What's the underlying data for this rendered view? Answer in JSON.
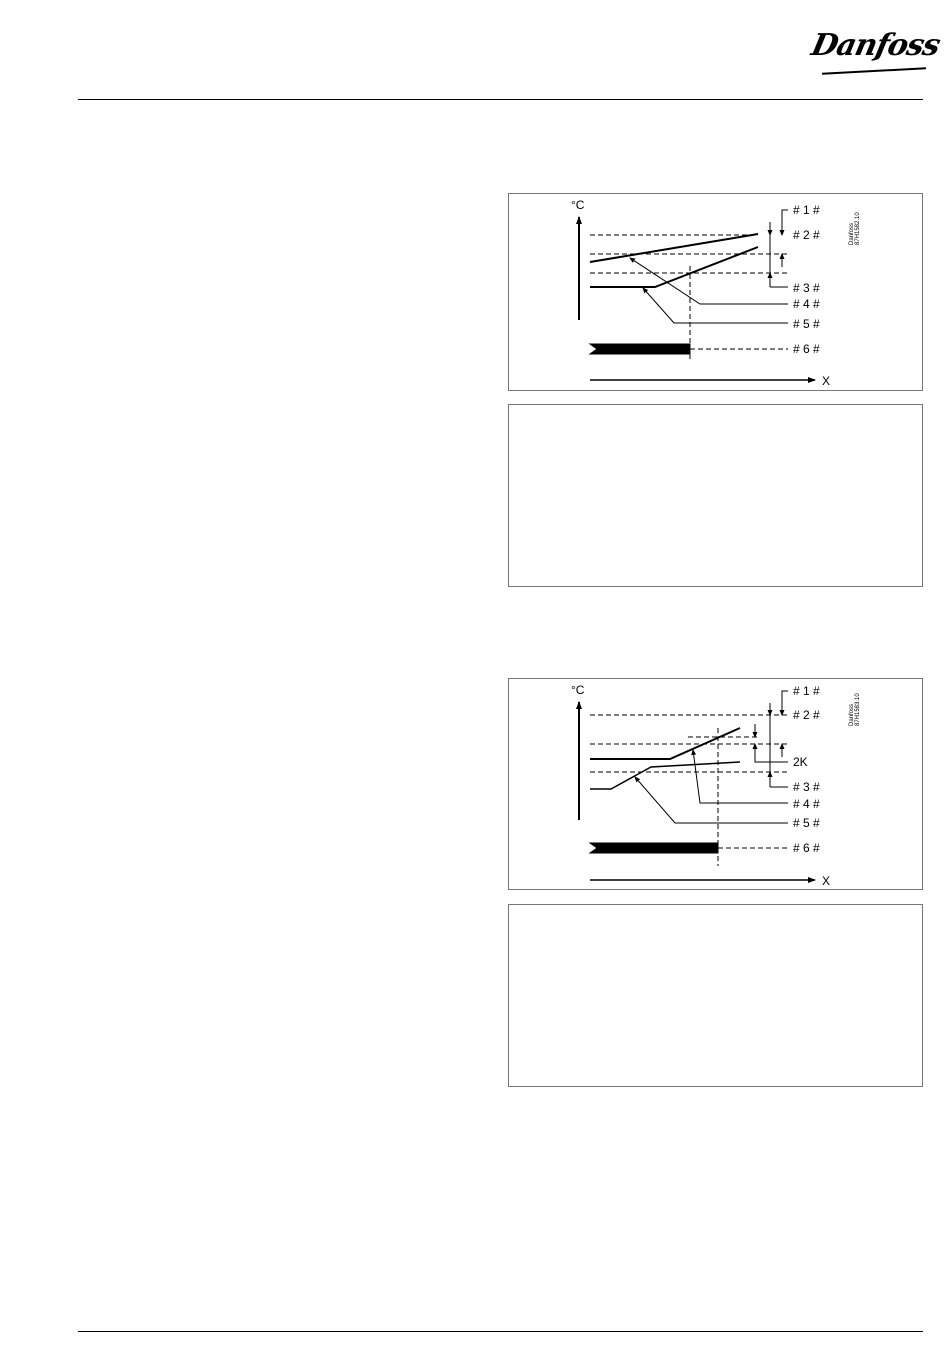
{
  "header": {
    "logo_text": "Danfoss"
  },
  "diagram1": {
    "y_axis_label": "°C",
    "x_axis_label": "X",
    "labels": [
      "# 1 #",
      "# 2 #",
      "# 3 #",
      "# 4 #",
      "# 5 #",
      "# 6 #"
    ],
    "code_line1": "Danfoss",
    "code_line2": "87H1582.10"
  },
  "diagram2": {
    "y_axis_label": "°C",
    "x_axis_label": "X",
    "labels": [
      "# 1 #",
      "# 2 #",
      "# 3 #",
      "# 4 #",
      "# 5 #",
      "# 6 #"
    ],
    "offset_label": "2K",
    "code_line1": "Danfoss",
    "code_line2": "87H1583.10"
  }
}
